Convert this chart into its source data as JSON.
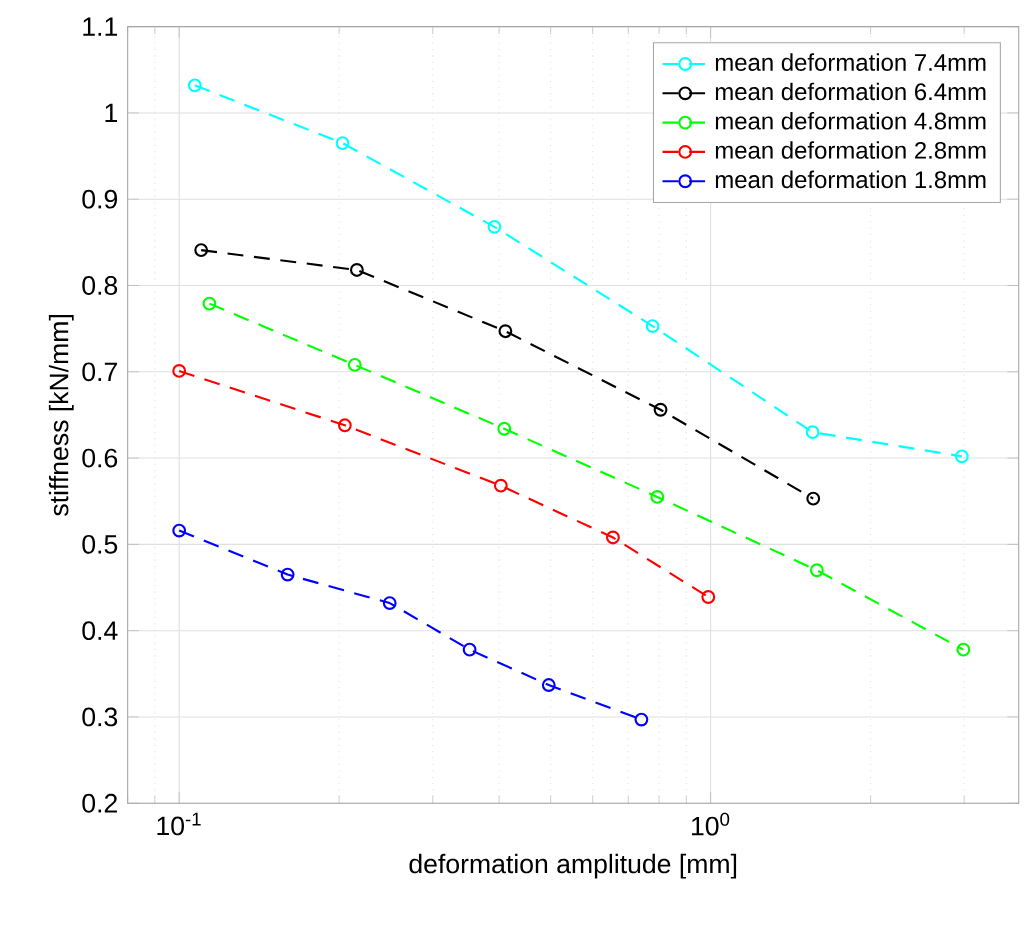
{
  "chart_data": {
    "type": "line",
    "xlabel": "deformation amplitude [mm]",
    "ylabel": "stiffness [kN/mm]",
    "log": "x",
    "grid": true,
    "legend": "top right",
    "marker": "circle",
    "line_style": "dashed",
    "xlim": [
      0.08,
      3.8
    ],
    "xticks": [
      {
        "value": 0.1,
        "label": "10$^{-1}$"
      },
      {
        "value": 1,
        "label": "10$^{0}$"
      }
    ],
    "ylim": [
      0.2,
      1.1
    ],
    "yticks": [
      0.2,
      0.3,
      0.4,
      0.5,
      0.6,
      0.7,
      0.8,
      0.9,
      1,
      1.1
    ],
    "series": [
      {
        "name": "mean deformation 7.4mm",
        "color": "#00ffff",
        "x": [
          0.107,
          0.203,
          0.392,
          0.778,
          1.556,
          2.97
        ],
        "values": [
          1.032,
          0.965,
          0.868,
          0.753,
          0.63,
          0.602
        ]
      },
      {
        "name": "mean deformation 6.4mm",
        "color": "#000000",
        "x": [
          0.11,
          0.216,
          0.411,
          0.805,
          1.56
        ],
        "values": [
          0.841,
          0.818,
          0.747,
          0.656,
          0.553
        ]
      },
      {
        "name": "mean deformation 4.8mm",
        "color": "#00ff00",
        "x": [
          0.114,
          0.214,
          0.409,
          0.794,
          1.585,
          2.99
        ],
        "values": [
          0.779,
          0.708,
          0.634,
          0.555,
          0.47,
          0.378
        ]
      },
      {
        "name": "mean deformation 2.8mm",
        "color": "#ff0000",
        "x": [
          0.1,
          0.205,
          0.403,
          0.655,
          0.99
        ],
        "values": [
          0.701,
          0.638,
          0.568,
          0.508,
          0.439
        ]
      },
      {
        "name": "mean deformation 1.8mm",
        "color": "#0000ff",
        "x": [
          0.1,
          0.16,
          0.249,
          0.352,
          0.496,
          0.741
        ],
        "values": [
          0.516,
          0.465,
          0.432,
          0.378,
          0.337,
          0.297
        ]
      }
    ]
  }
}
